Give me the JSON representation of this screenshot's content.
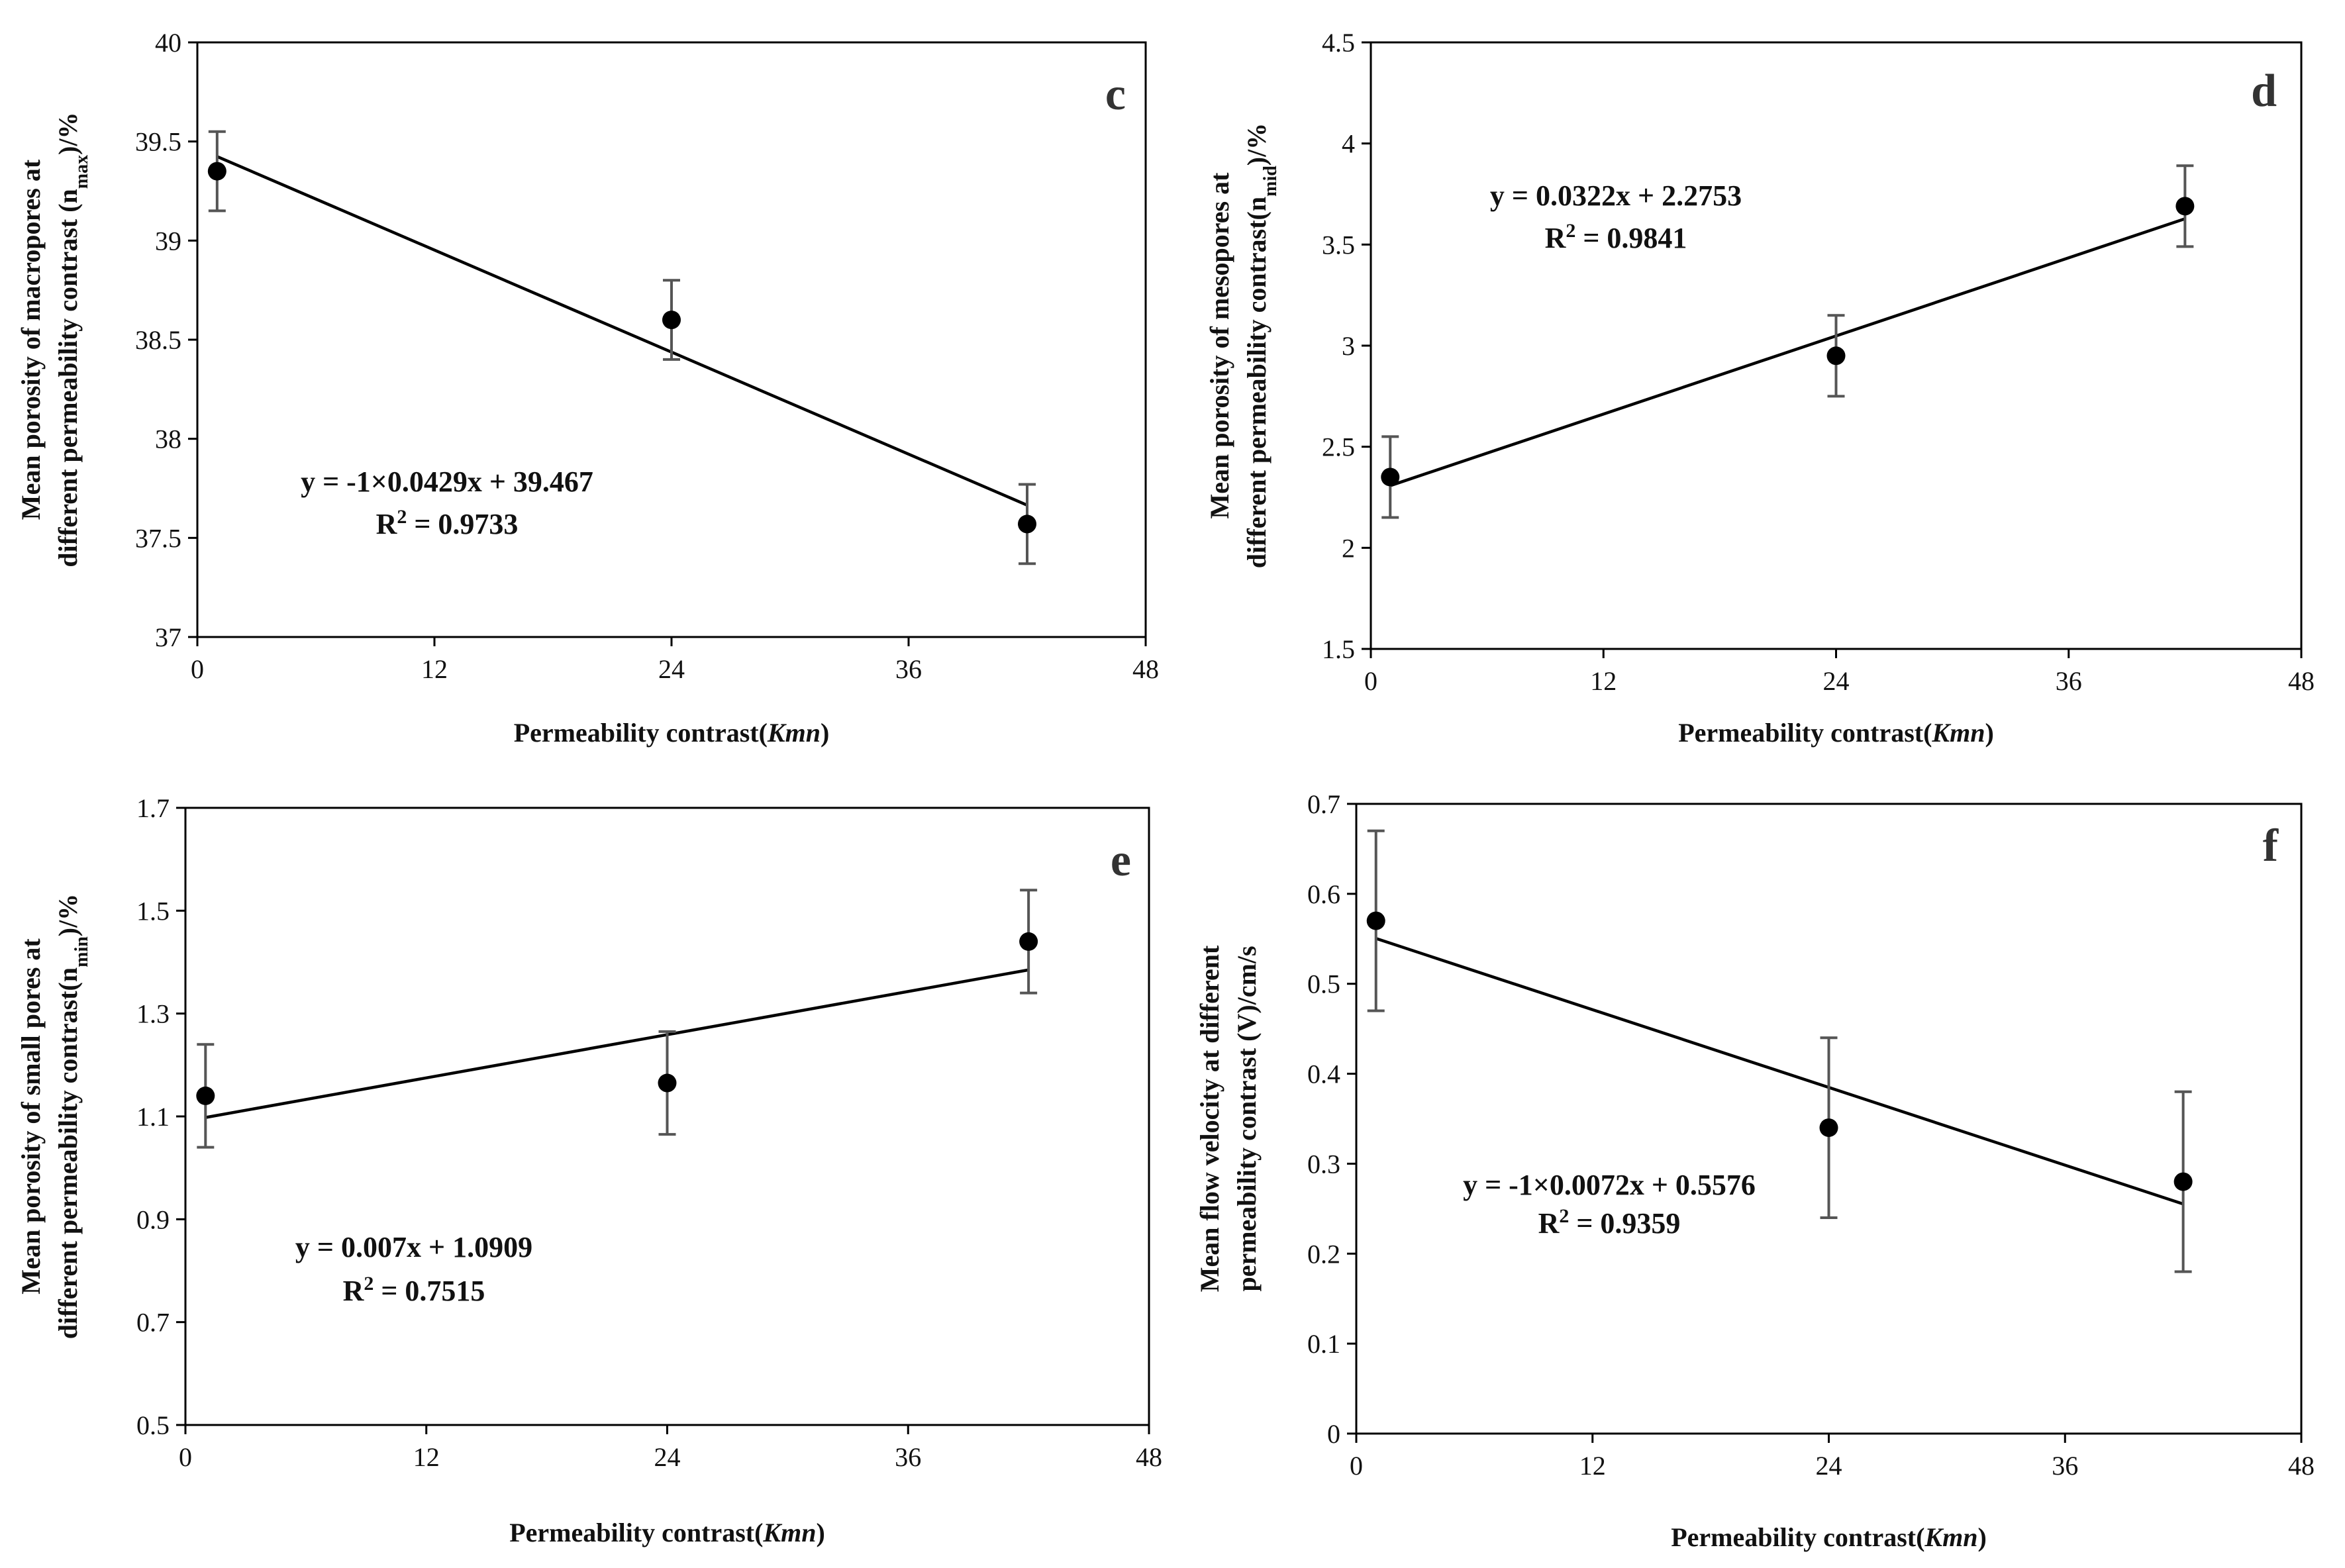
{
  "figure": {
    "colors": {
      "axis": "#000000",
      "fit_line": "#000000",
      "error_bar": "#555555",
      "point": "#000000",
      "panel_letter": "#333333"
    }
  },
  "chart_data": [
    {
      "type": "scatter",
      "panel": "c",
      "xlabel_main": "Permeability contrast(",
      "xlabel_italic": "Kmn",
      "xlabel_end": ")",
      "ylabel_line1_pre": "Mean porosity of macropores at",
      "ylabel_line2_pre": "different permeability contrast (n",
      "ylabel_sub": "max",
      "ylabel_line2_post": ")/%",
      "xlim": [
        0,
        48
      ],
      "ylim": [
        37,
        40
      ],
      "xticks": [
        "0",
        "12",
        "24",
        "36",
        "48"
      ],
      "yticks": [
        "37",
        "37.5",
        "38",
        "38.5",
        "39",
        "39.5",
        "40"
      ],
      "x": [
        1,
        24,
        42
      ],
      "y": [
        39.35,
        38.6,
        37.57
      ],
      "errors": [
        0.2,
        0.2,
        0.2
      ],
      "fit": {
        "slope": -0.0429,
        "intercept": 39.467,
        "x_range": [
          1,
          42
        ]
      },
      "equation": "y = -1×0.0429x + 39.467",
      "r2_prefix": "R",
      "r2_sup": "2",
      "r2_value": " = 0.9733"
    },
    {
      "type": "scatter",
      "panel": "d",
      "xlabel_main": "Permeability contrast(",
      "xlabel_italic": "Kmn",
      "xlabel_end": ")",
      "ylabel_line1_pre": "Mean porosity of mesopores at",
      "ylabel_line2_pre": "different permeability contrast(n",
      "ylabel_sub": "mid",
      "ylabel_line2_post": ")/%",
      "xlim": [
        0,
        48
      ],
      "ylim": [
        1.5,
        4.5
      ],
      "xticks": [
        "0",
        "12",
        "24",
        "36",
        "48"
      ],
      "yticks": [
        "1.5",
        "2",
        "2.5",
        "3",
        "3.5",
        "4",
        "4.5"
      ],
      "x": [
        1,
        24,
        42
      ],
      "y": [
        2.35,
        2.95,
        3.69
      ],
      "errors": [
        0.2,
        0.2,
        0.2
      ],
      "fit": {
        "slope": 0.0322,
        "intercept": 2.2753,
        "x_range": [
          1,
          42
        ]
      },
      "equation": "y = 0.0322x + 2.2753",
      "r2_prefix": "R",
      "r2_sup": "2",
      "r2_value": " = 0.9841"
    },
    {
      "type": "scatter",
      "panel": "e",
      "xlabel_main": "Permeability contrast(",
      "xlabel_italic": "Kmn",
      "xlabel_end": ")",
      "ylabel_line1_pre": "Mean porosity of small pores at",
      "ylabel_line2_pre": "different permeability contrast(n",
      "ylabel_sub": "min",
      "ylabel_line2_post": ")/%",
      "xlim": [
        0,
        48
      ],
      "ylim": [
        0.5,
        1.7
      ],
      "xticks": [
        "0",
        "12",
        "24",
        "36",
        "48"
      ],
      "yticks": [
        "0.5",
        "0.7",
        "0.9",
        "1.1",
        "1.3",
        "1.5",
        "1.7"
      ],
      "x": [
        1,
        24,
        42
      ],
      "y": [
        1.14,
        1.165,
        1.44
      ],
      "errors": [
        0.1,
        0.1,
        0.1
      ],
      "fit": {
        "slope": 0.007,
        "intercept": 1.0909,
        "x_range": [
          1,
          42
        ]
      },
      "equation": "y = 0.007x + 1.0909",
      "r2_prefix": "R",
      "r2_sup": "2",
      "r2_value": " = 0.7515"
    },
    {
      "type": "scatter",
      "panel": "f",
      "xlabel_main": "Permeability contrast(",
      "xlabel_italic": "Kmn",
      "xlabel_end": ")",
      "ylabel_line1_pre": "Mean flow velocity at different",
      "ylabel_line2_pre": "permeability contrast (V)/cm/s",
      "ylabel_sub": "",
      "ylabel_line2_post": "",
      "xlim": [
        0,
        48
      ],
      "ylim": [
        0,
        0.7
      ],
      "xticks": [
        "0",
        "12",
        "24",
        "36",
        "48"
      ],
      "yticks": [
        "0",
        "0.1",
        "0.2",
        "0.3",
        "0.4",
        "0.5",
        "0.6",
        "0.7"
      ],
      "x": [
        1,
        24,
        42
      ],
      "y": [
        0.57,
        0.34,
        0.28
      ],
      "errors": [
        0.1,
        0.1,
        0.1
      ],
      "fit": {
        "slope": -0.0072,
        "intercept": 0.5576,
        "x_range": [
          1,
          42
        ]
      },
      "equation": "y = -1×0.0072x + 0.5576",
      "r2_prefix": "R",
      "r2_sup": "2",
      "r2_value": " = 0.9359"
    }
  ]
}
